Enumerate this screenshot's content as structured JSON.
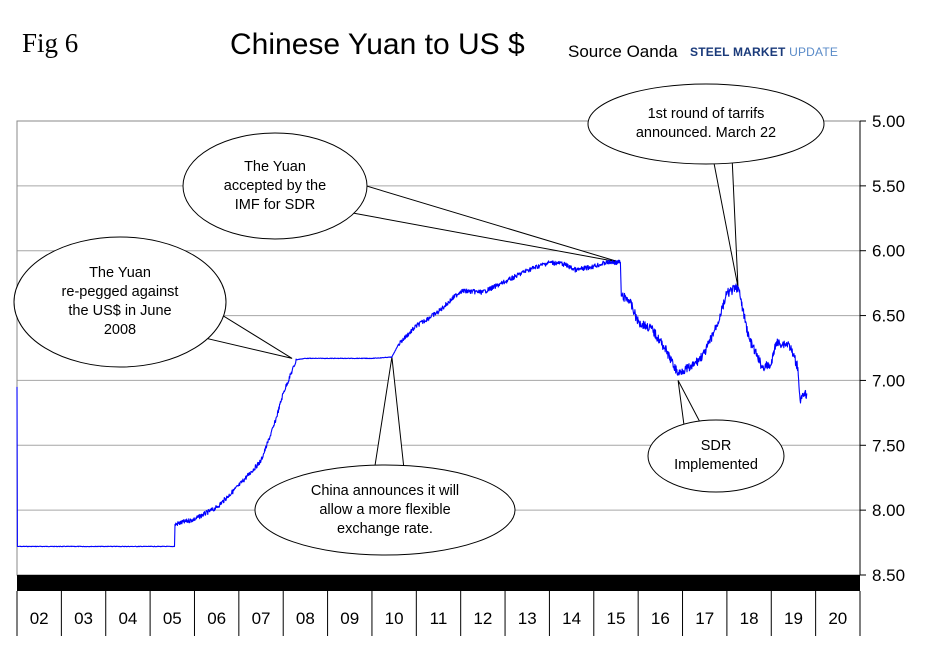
{
  "header": {
    "fig_label": "Fig 6",
    "title": "Chinese Yuan to US $",
    "source": "Source Oanda",
    "brand_bold": "STEEL MARKET",
    "brand_light": "UPDATE"
  },
  "chart_data": {
    "type": "line",
    "title": "Chinese Yuan to US $",
    "y_axis": {
      "inverted": true,
      "ylim": [
        5.0,
        8.5
      ],
      "ticks": [
        "5.00",
        "5.50",
        "6.00",
        "6.50",
        "7.00",
        "7.50",
        "8.00",
        "8.50"
      ]
    },
    "x_axis": {
      "xlim": [
        2002,
        2021
      ],
      "tick_labels": [
        "02",
        "03",
        "04",
        "05",
        "06",
        "07",
        "08",
        "09",
        "10",
        "11",
        "12",
        "13",
        "14",
        "15",
        "16",
        "17",
        "18",
        "19",
        "20"
      ]
    },
    "grid": "horizontal",
    "line_color": "#0000ff",
    "series": [
      {
        "x": [
          2002.0,
          2002.01,
          2002.02,
          2005.0,
          2005.55,
          2005.56,
          2006.0,
          2006.5,
          2007.0,
          2007.5,
          2007.8,
          2008.0,
          2008.3,
          2008.5,
          2009.0,
          2009.5,
          2010.0,
          2010.45,
          2010.6,
          2011.0,
          2011.5,
          2012.0,
          2012.5,
          2013.0,
          2013.5,
          2014.0,
          2014.3,
          2014.6,
          2015.0,
          2015.3,
          2015.6,
          2015.62,
          2015.8,
          2016.0,
          2016.3,
          2016.6,
          2016.9,
          2017.0,
          2017.2,
          2017.5,
          2017.8,
          2018.0,
          2018.25,
          2018.5,
          2018.8,
          2019.0,
          2019.1,
          2019.4,
          2019.6,
          2019.65,
          2019.8
        ],
        "y": [
          7.05,
          8.28,
          8.28,
          8.28,
          8.28,
          8.11,
          8.07,
          7.98,
          7.81,
          7.62,
          7.34,
          7.1,
          6.84,
          6.83,
          6.83,
          6.83,
          6.83,
          6.82,
          6.72,
          6.58,
          6.47,
          6.31,
          6.32,
          6.24,
          6.15,
          6.09,
          6.1,
          6.15,
          6.12,
          6.09,
          6.09,
          6.35,
          6.38,
          6.55,
          6.6,
          6.75,
          6.95,
          6.92,
          6.9,
          6.79,
          6.55,
          6.33,
          6.28,
          6.68,
          6.9,
          6.88,
          6.71,
          6.72,
          6.9,
          7.15,
          7.1
        ]
      }
    ],
    "annotations": [
      {
        "lines": [
          "The Yuan",
          "re-pegged against",
          "the US$ in June",
          "2008"
        ],
        "x": 2008.2,
        "y": 6.83
      },
      {
        "lines": [
          "The Yuan",
          "accepted by the",
          "IMF for SDR"
        ],
        "x": 2015.6,
        "y": 6.09
      },
      {
        "lines": [
          "1st round of tarrifs",
          "announced. March 22"
        ],
        "x": 2018.25,
        "y": 6.28
      },
      {
        "lines": [
          "China announces it will",
          "allow a more flexible",
          "exchange rate."
        ],
        "x": 2010.45,
        "y": 6.82
      },
      {
        "lines": [
          "SDR",
          "Implemented"
        ],
        "x": 2016.9,
        "y": 7.0
      }
    ]
  }
}
